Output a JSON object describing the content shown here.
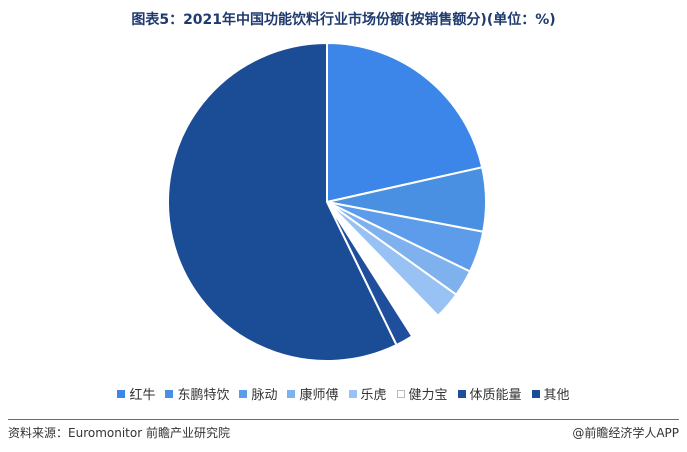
{
  "title": "图表5：2021年中国功能饮料行业市场份额(按销售额分)(单位：%)",
  "source": "资料来源：Euromonitor 前瞻产业研究院",
  "credit": "@前瞻经济学人APP",
  "chart_data": {
    "type": "pie",
    "title": "图表5：2021年中国功能饮料行业市场份额(按销售额分)(单位：%)",
    "legend_position": "bottom",
    "start_angle_deg": 0,
    "direction": "clockwise",
    "slices": [
      {
        "label": "红牛",
        "value": 21.5,
        "color": "#3b86e8"
      },
      {
        "label": "东鹏特饮",
        "value": 6.5,
        "color": "#4a90e2"
      },
      {
        "label": "脉动",
        "value": 4.2,
        "color": "#5d9ceb"
      },
      {
        "label": "康师傅",
        "value": 2.7,
        "color": "#7fb1ef"
      },
      {
        "label": "乐虎",
        "value": 2.8,
        "color": "#98c2f3"
      },
      {
        "label": "健力宝",
        "value": 3.3,
        "color": "#ffffff"
      },
      {
        "label": "体质能量",
        "value": 1.8,
        "color": "#1f4f9c"
      },
      {
        "label": "其他",
        "value": 57.2,
        "color": "#1b4c96"
      }
    ]
  }
}
